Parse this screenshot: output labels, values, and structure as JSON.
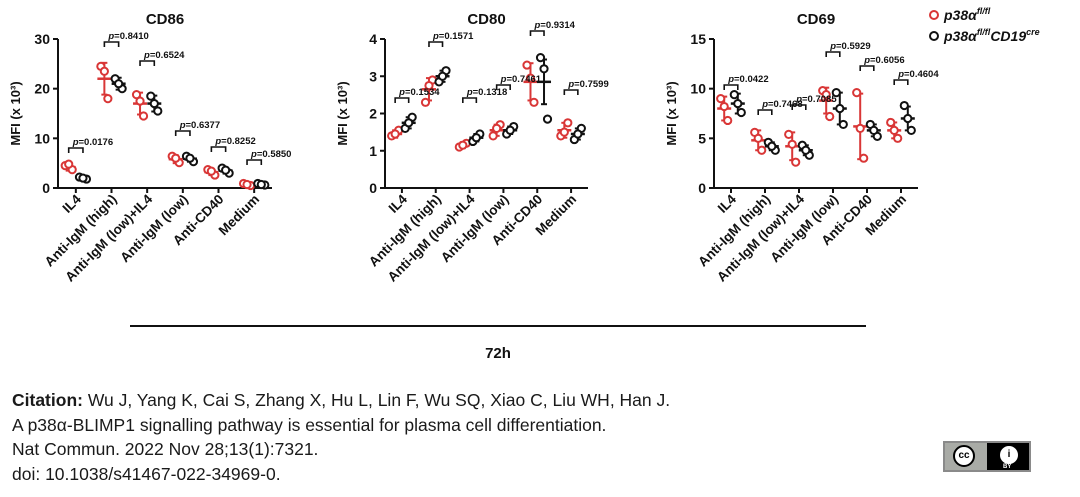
{
  "figure": {
    "timepoint": "72h",
    "legend": {
      "series": [
        {
          "base": "p38α",
          "sup": "fl/fl",
          "color": "#d93636"
        },
        {
          "base": "p38α",
          "sup": "fl/fl",
          "tail": "CD19",
          "tail_sup": "cre",
          "color": "#111111"
        }
      ]
    }
  },
  "chart_data": [
    {
      "type": "scatter",
      "title": "CD86",
      "ylabel": "MFI (x 10³)",
      "ylim": [
        0,
        30
      ],
      "yticks": [
        0,
        10,
        20,
        30
      ],
      "categories": [
        "IL4",
        "Anti-IgM (high)",
        "Anti-IgM (low)+IL4",
        "Anti-IgM (low)",
        "Anti-CD40",
        "Medium"
      ],
      "series": [
        {
          "name": "p38αfl/fl",
          "means": [
            4.2,
            22.0,
            17.0,
            5.8,
            3.2,
            0.7
          ],
          "sd": [
            0.7,
            3.2,
            2.2,
            0.8,
            0.6,
            0.3
          ],
          "points": [
            [
              4.5,
              3.7,
              4.8
            ],
            [
              24.5,
              18.0,
              23.5
            ],
            [
              18.8,
              14.5,
              17.5
            ],
            [
              6.4,
              5.1,
              6.0
            ],
            [
              3.7,
              2.6,
              3.4
            ],
            [
              0.9,
              0.5,
              0.7
            ]
          ]
        },
        {
          "name": "p38αfl/flCD19cre",
          "means": [
            2.0,
            21.0,
            17.0,
            5.9,
            3.5,
            0.7
          ],
          "sd": [
            0.3,
            1.2,
            1.6,
            0.6,
            0.6,
            0.2
          ],
          "points": [
            [
              2.2,
              1.8,
              2.0
            ],
            [
              22.0,
              20.0,
              21.0
            ],
            [
              18.5,
              15.5,
              17.0
            ],
            [
              6.4,
              5.3,
              6.0
            ],
            [
              4.0,
              3.0,
              3.6
            ],
            [
              0.9,
              0.6,
              0.7
            ]
          ]
        }
      ],
      "p_values": [
        "p=0.0176",
        "p=0.8410",
        "p=0.6524",
        "p=0.6377",
        "p=0.8252",
        "p=0.5850"
      ]
    },
    {
      "type": "scatter",
      "title": "CD80",
      "ylabel": "MFI (x 10³)",
      "ylim": [
        0,
        4
      ],
      "yticks": [
        0,
        1,
        2,
        3,
        4
      ],
      "categories": [
        "IL4",
        "Anti-IgM (high)",
        "Anti-IgM (low)+IL4",
        "Anti-IgM (low)",
        "Anti-CD40",
        "Medium"
      ],
      "series": [
        {
          "name": "p38αfl/fl",
          "means": [
            1.45,
            2.65,
            1.15,
            1.55,
            2.85,
            1.55
          ],
          "sd": [
            0.1,
            0.3,
            0.08,
            0.15,
            0.5,
            0.2
          ],
          "points": [
            [
              1.4,
              1.55,
              1.45
            ],
            [
              2.3,
              2.9,
              2.75
            ],
            [
              1.1,
              1.2,
              1.15
            ],
            [
              1.4,
              1.7,
              1.6
            ],
            [
              3.3,
              2.3,
              2.95
            ],
            [
              1.4,
              1.75,
              1.5
            ]
          ]
        },
        {
          "name": "p38αfl/flCD19cre",
          "means": [
            1.75,
            3.0,
            1.35,
            1.55,
            2.85,
            1.45
          ],
          "sd": [
            0.15,
            0.15,
            0.1,
            0.1,
            0.6,
            0.15
          ],
          "points": [
            [
              1.6,
              1.9,
              1.75
            ],
            [
              2.85,
              3.15,
              3.0
            ],
            [
              1.25,
              1.45,
              1.35
            ],
            [
              1.45,
              1.65,
              1.55
            ],
            [
              3.5,
              1.85,
              3.2
            ],
            [
              1.3,
              1.6,
              1.45
            ]
          ]
        }
      ],
      "p_values": [
        "p=0.1534",
        "p=0.1571",
        "p=0.1318",
        "p=0.7461",
        "p=0.9314",
        "p=0.7599"
      ]
    },
    {
      "type": "scatter",
      "title": "CD69",
      "ylabel": "MFI (x 10³)",
      "ylim": [
        0,
        15
      ],
      "yticks": [
        0,
        5,
        10,
        15
      ],
      "categories": [
        "IL4",
        "Anti-IgM (high)",
        "Anti-IgM (low)+IL4",
        "Anti-IgM (low)",
        "Anti-CD40",
        "Medium"
      ],
      "series": [
        {
          "name": "p38αfl/fl",
          "means": [
            8.0,
            4.8,
            4.2,
            8.8,
            6.2,
            5.8
          ],
          "sd": [
            1.2,
            1.0,
            1.4,
            1.3,
            3.3,
            0.8
          ],
          "points": [
            [
              9.0,
              6.8,
              8.2
            ],
            [
              5.6,
              3.8,
              5.0
            ],
            [
              5.4,
              2.6,
              4.4
            ],
            [
              9.8,
              7.2,
              9.4
            ],
            [
              9.6,
              3.0,
              6.0
            ],
            [
              6.6,
              5.0,
              5.8
            ]
          ]
        },
        {
          "name": "p38αfl/flCD19cre",
          "means": [
            8.5,
            4.2,
            3.8,
            8.0,
            5.8,
            7.0
          ],
          "sd": [
            1.0,
            0.4,
            0.5,
            1.6,
            0.6,
            1.2
          ],
          "points": [
            [
              9.4,
              7.6,
              8.5
            ],
            [
              4.6,
              3.8,
              4.2
            ],
            [
              4.3,
              3.3,
              3.8
            ],
            [
              9.6,
              6.4,
              8.0
            ],
            [
              6.4,
              5.2,
              5.8
            ],
            [
              8.3,
              5.8,
              7.0
            ]
          ]
        }
      ],
      "p_values": [
        "p=0.0422",
        "p=0.7468",
        "p=0.7085",
        "p=0.5929",
        "p=0.6056",
        "p=0.4604"
      ]
    }
  ],
  "citation": {
    "label": "Citation:",
    "authors": " Wu J, Yang K, Cai S, Zhang X, Hu L, Lin F, Wu SQ, Xiao C, Liu WH, Han J.",
    "title": "A p38α-BLIMP1 signalling pathway is essential for plasma cell differentiation.",
    "journal": "Nat Commun. 2022 Nov 28;13(1):7321.",
    "doi": "doi: 10.1038/s41467-022-34969-0."
  },
  "license_badge": {
    "left": "cc",
    "right": "i",
    "text": "BY"
  }
}
